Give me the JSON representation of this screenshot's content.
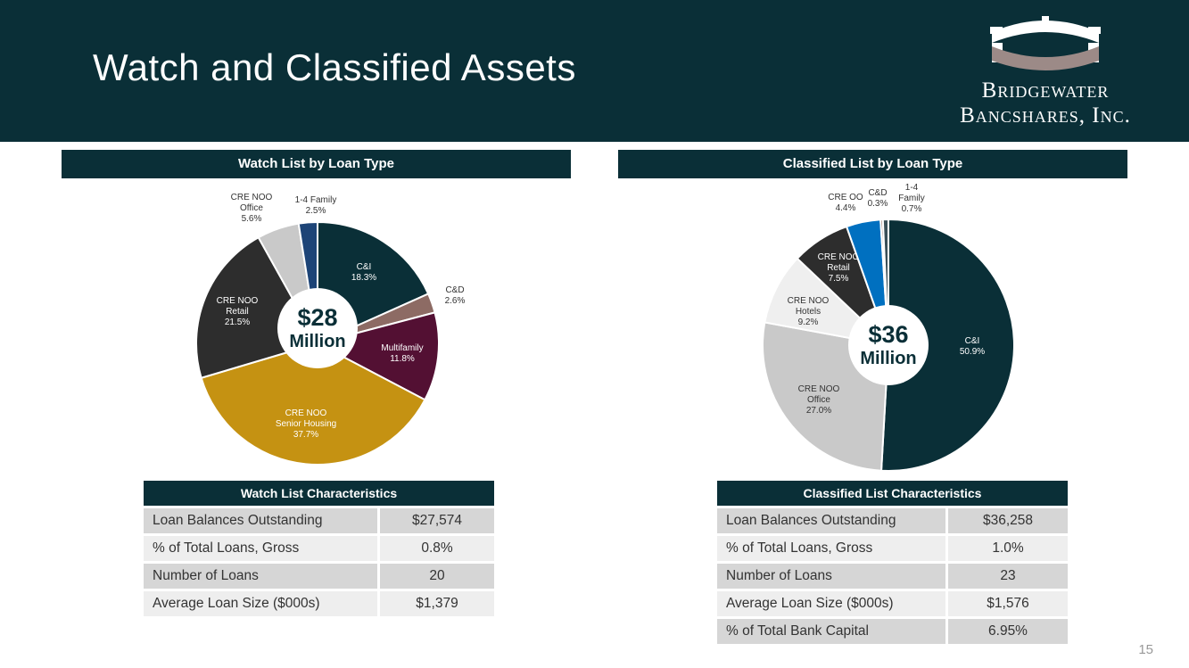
{
  "slide": {
    "title": "Watch and Classified Assets",
    "page_number": "15"
  },
  "logo": {
    "line1": "Bridgewater",
    "line2": "Bancshares, Inc."
  },
  "colors": {
    "header_bg": "#0a2f37",
    "teal": "#0a2f37",
    "taupe": "#8d6b64",
    "maroon": "#531033",
    "gold": "#c59212",
    "charcoal": "#2d2d2d",
    "light_gray": "#c9c9c9",
    "navy": "#1d4477",
    "blue": "#0070c0",
    "white_gray": "#efefef",
    "slate": "#3a4f57"
  },
  "chart_data": [
    {
      "type": "pie",
      "title": "Watch List by Loan Type",
      "center_amount": "$28",
      "center_unit": "Million",
      "slices": [
        {
          "lines": [
            "C&I",
            "18.3%"
          ],
          "value": 18.3,
          "color": "#0a2f37"
        },
        {
          "lines": [
            "C&D",
            "2.6%"
          ],
          "value": 2.6,
          "color": "#8d6b64"
        },
        {
          "lines": [
            "Multifamily",
            "11.8%"
          ],
          "value": 11.8,
          "color": "#531033"
        },
        {
          "lines": [
            "CRE NOO",
            "Senior Housing",
            "37.7%"
          ],
          "value": 37.7,
          "color": "#c59212"
        },
        {
          "lines": [
            "CRE NOO",
            "Retail",
            "21.5%"
          ],
          "value": 21.5,
          "color": "#2d2d2d"
        },
        {
          "lines": [
            "CRE NOO",
            "Office",
            "5.6%"
          ],
          "value": 5.6,
          "color": "#c9c9c9"
        },
        {
          "lines": [
            "1-4 Family",
            "2.5%"
          ],
          "value": 2.5,
          "color": "#1d4477"
        }
      ]
    },
    {
      "type": "pie",
      "title": "Classified List by Loan Type",
      "center_amount": "$36",
      "center_unit": "Million",
      "slices": [
        {
          "lines": [
            "C&I",
            "50.9%"
          ],
          "value": 50.9,
          "color": "#0a2f37"
        },
        {
          "lines": [
            "CRE NOO",
            "Office",
            "27.0%"
          ],
          "value": 27.0,
          "color": "#c9c9c9"
        },
        {
          "lines": [
            "CRE NOO",
            "Hotels",
            "9.2%"
          ],
          "value": 9.2,
          "color": "#efefef"
        },
        {
          "lines": [
            "CRE NOO",
            "Retail",
            "7.5%"
          ],
          "value": 7.5,
          "color": "#2d2d2d"
        },
        {
          "lines": [
            "CRE OO",
            "4.4%"
          ],
          "value": 4.4,
          "color": "#0070c0"
        },
        {
          "lines": [
            "C&D",
            "0.3%"
          ],
          "value": 0.3,
          "color": "#8d6b64"
        },
        {
          "lines": [
            "1-4",
            "Family",
            "0.7%"
          ],
          "value": 0.7,
          "color": "#3a4f57"
        }
      ]
    }
  ],
  "watch_table": {
    "title": "Watch List Characteristics",
    "rows": [
      {
        "label": "Loan Balances Outstanding",
        "value": "$27,574"
      },
      {
        "label": "% of Total Loans, Gross",
        "value": "0.8%"
      },
      {
        "label": "Number of Loans",
        "value": "20"
      },
      {
        "label": "Average Loan Size ($000s)",
        "value": "$1,379"
      }
    ]
  },
  "classified_table": {
    "title": "Classified List Characteristics",
    "rows": [
      {
        "label": "Loan Balances Outstanding",
        "value": "$36,258"
      },
      {
        "label": "% of Total Loans, Gross",
        "value": "1.0%"
      },
      {
        "label": "Number of Loans",
        "value": "23"
      },
      {
        "label": "Average Loan Size ($000s)",
        "value": "$1,576"
      },
      {
        "label": "% of Total Bank Capital",
        "value": "6.95%"
      }
    ]
  }
}
